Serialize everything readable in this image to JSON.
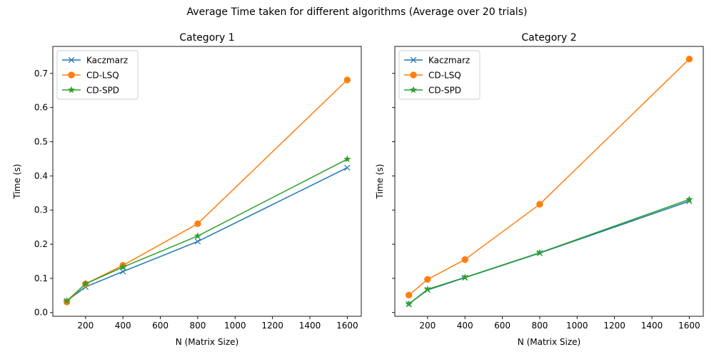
{
  "suptitle": "Average Time taken for different algorithms (Average over 20 trials)",
  "series_style": [
    {
      "name": "Kaczmarz",
      "color": "#1f77b4",
      "marker": "x"
    },
    {
      "name": "CD-LSQ",
      "color": "#ff7f0e",
      "marker": "circle"
    },
    {
      "name": "CD-SPD",
      "color": "#2ca02c",
      "marker": "star"
    }
  ],
  "chart_data": [
    {
      "type": "line",
      "title": "Category 1",
      "xlabel": "N (Matrix Size)",
      "ylabel": "Time (s)",
      "x": [
        100,
        200,
        400,
        800,
        1600
      ],
      "xlim": [
        25,
        1675
      ],
      "ylim": [
        -0.011,
        0.779
      ],
      "xticks": [
        "200",
        "400",
        "600",
        "800",
        "1000",
        "1200",
        "1400",
        "1600"
      ],
      "yticks": [
        "0.0",
        "0.1",
        "0.2",
        "0.3",
        "0.4",
        "0.5",
        "0.6",
        "0.7"
      ],
      "legend": "top-left",
      "grid": false,
      "series": [
        {
          "name": "Kaczmarz",
          "values": [
            0.034,
            0.075,
            0.12,
            0.208,
            0.424
          ]
        },
        {
          "name": "CD-LSQ",
          "values": [
            0.031,
            0.084,
            0.138,
            0.26,
            0.681
          ]
        },
        {
          "name": "CD-SPD",
          "values": [
            0.034,
            0.084,
            0.133,
            0.224,
            0.449
          ]
        }
      ]
    },
    {
      "type": "line",
      "title": "Category 2",
      "xlabel": "N (Matrix Size)",
      "ylabel": "Time (s)",
      "x": [
        100,
        200,
        400,
        800,
        1600
      ],
      "xlim": [
        25,
        1675
      ],
      "ylim": [
        -0.011,
        0.779
      ],
      "xticks": [
        "200",
        "400",
        "600",
        "800",
        "1000",
        "1200",
        "1400",
        "1600"
      ],
      "yticks": [],
      "legend": "top-left",
      "grid": false,
      "series": [
        {
          "name": "Kaczmarz",
          "values": [
            0.025,
            0.066,
            0.102,
            0.174,
            0.326
          ]
        },
        {
          "name": "CD-LSQ",
          "values": [
            0.051,
            0.097,
            0.155,
            0.317,
            0.742
          ]
        },
        {
          "name": "CD-SPD",
          "values": [
            0.025,
            0.068,
            0.103,
            0.175,
            0.331
          ]
        }
      ]
    }
  ]
}
